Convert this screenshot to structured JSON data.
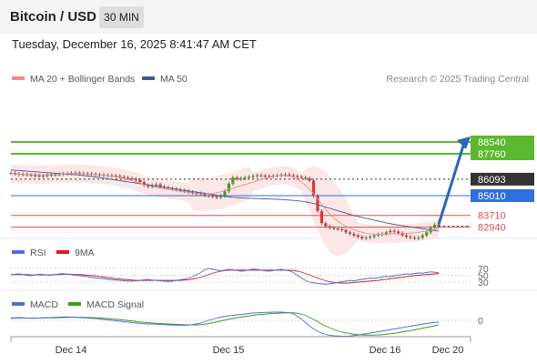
{
  "header": {
    "title": "Bitcoin / USD",
    "timeframe": "30 MIN",
    "datetime": "Tuesday, December 16, 2025 8:41:47 AM CET"
  },
  "chart_data": [
    {
      "type": "line",
      "legend": [
        {
          "label": "MA 20 + Bollinger Bands",
          "color": "#f28a8a"
        },
        {
          "label": "MA 50",
          "color": "#3d5c9a"
        }
      ],
      "source": "Research © 2025 Trading Central",
      "levels": [
        {
          "value": 88540,
          "label": "88540",
          "color": "#5cb82e"
        },
        {
          "value": 87760,
          "label": "87760",
          "color": "#5cb82e"
        },
        {
          "value": 86093,
          "label": "86093",
          "color": "#333333"
        },
        {
          "value": 85010,
          "label": "85010",
          "color": "#2f6fe0"
        },
        {
          "value": 83710,
          "label": "83710",
          "color": "#e05050"
        },
        {
          "value": 82940,
          "label": "82940",
          "color": "#e05050"
        }
      ],
      "price_series": [
        86500,
        86450,
        86400,
        86420,
        86380,
        86350,
        86330,
        86300,
        86320,
        86350,
        86380,
        86400,
        86420,
        86450,
        86470,
        86500,
        86520,
        86480,
        86460,
        86450,
        86430,
        86400,
        86380,
        86360,
        86340,
        86320,
        86300,
        86250,
        86200,
        86150,
        86100,
        86050,
        85900,
        85700,
        85600,
        85700,
        85750,
        85600,
        85550,
        85500,
        85450,
        85400,
        85350,
        85300,
        85250,
        85200,
        85150,
        85100,
        85050,
        85000,
        84950,
        84900,
        85000,
        85300,
        85800,
        86200,
        86100,
        86150,
        86200,
        86250,
        86300,
        86350,
        86320,
        86300,
        86280,
        86320,
        86350,
        86380,
        86400,
        86350,
        86300,
        86250,
        86200,
        86150,
        86000,
        85000,
        84000,
        83200,
        83000,
        82900,
        82850,
        82800,
        82750,
        82600,
        82500,
        82400,
        82300,
        82200,
        82250,
        82300,
        82400,
        82450,
        82500,
        82600,
        82700,
        82650,
        82550,
        82400,
        82300,
        82250,
        82200,
        82250,
        82400,
        82600,
        82900,
        83100,
        83000
      ],
      "ma50": [
        86700,
        86680,
        86660,
        86640,
        86620,
        86600,
        86580,
        86560,
        86540,
        86520,
        86500,
        86480,
        86460,
        86440,
        86420,
        86400,
        86380,
        86360,
        86330,
        86300,
        86270,
        86240,
        86200,
        86160,
        86120,
        86080,
        86040,
        86000,
        85960,
        85920,
        85880,
        85840,
        85800,
        85760,
        85720,
        85680,
        85640,
        85600,
        85560,
        85520,
        85480,
        85440,
        85400,
        85360,
        85320,
        85280,
        85240,
        85200,
        85160,
        85120,
        85080,
        85040,
        85000,
        84960,
        84930,
        84900,
        84880,
        84860,
        84850,
        84840,
        84830,
        84820,
        84810,
        84800,
        84790,
        84780,
        84770,
        84760,
        84740,
        84720,
        84700,
        84680,
        84640,
        84600,
        84560,
        84500,
        84420,
        84340,
        84260,
        84180,
        84100,
        84020,
        83940,
        83860,
        83780,
        83700,
        83640,
        83580,
        83520,
        83460,
        83400,
        83340,
        83280,
        83220,
        83170,
        83120,
        83080,
        83040,
        83000,
        82960,
        82920,
        82880,
        82840,
        82800,
        82760,
        82720,
        82680
      ],
      "ma20": [
        86450,
        86440,
        86430,
        86420,
        86410,
        86400,
        86390,
        86380,
        86380,
        86390,
        86400,
        86410,
        86420,
        86440,
        86450,
        86460,
        86470,
        86460,
        86450,
        86440,
        86420,
        86400,
        86380,
        86350,
        86320,
        86290,
        86250,
        86200,
        86140,
        86080,
        86000,
        85920,
        85830,
        85740,
        85660,
        85600,
        85550,
        85500,
        85460,
        85420,
        85380,
        85340,
        85300,
        85260,
        85220,
        85180,
        85140,
        85120,
        85110,
        85120,
        85150,
        85200,
        85260,
        85340,
        85420,
        85500,
        85580,
        85660,
        85740,
        85820,
        85900,
        85980,
        86060,
        86140,
        86220,
        86280,
        86320,
        86340,
        86330,
        86300,
        86220,
        86080,
        85900,
        85700,
        85450,
        85150,
        84800,
        84450,
        84100,
        83800,
        83550,
        83330,
        83150,
        83000,
        82870,
        82760,
        82670,
        82600,
        82540,
        82500,
        82480,
        82470,
        82470,
        82480,
        82490,
        82500,
        82510,
        82520,
        82530,
        82550,
        82570,
        82600,
        82640,
        82680,
        82730,
        82790,
        82840
      ],
      "x_ticks": [
        "Dec 14",
        "Dec 15",
        "Dec 16",
        "Dec 20"
      ]
    },
    {
      "type": "line",
      "legend": [
        {
          "label": "RSI",
          "color": "#4a6fd9"
        },
        {
          "label": "9MA",
          "color": "#d42020"
        }
      ],
      "levels": [
        "70",
        "50",
        "30"
      ],
      "rsi": [
        52,
        53,
        54,
        52,
        50,
        49,
        51,
        53,
        52,
        51,
        50,
        52,
        54,
        55,
        53,
        52,
        50,
        49,
        48,
        46,
        44,
        42,
        41,
        40,
        38,
        37,
        36,
        35,
        34,
        33,
        33,
        34,
        35,
        37,
        38,
        36,
        35,
        34,
        33,
        32,
        33,
        35,
        37,
        39,
        42,
        46,
        52,
        58,
        66,
        70,
        68,
        65,
        63,
        65,
        67,
        66,
        64,
        62,
        63,
        66,
        68,
        67,
        65,
        63,
        62,
        64,
        66,
        67,
        65,
        63,
        58,
        50,
        42,
        35,
        30,
        28,
        26,
        25,
        24,
        25,
        27,
        29,
        31,
        33,
        35,
        34,
        36,
        38,
        40,
        42,
        41,
        43,
        45,
        47,
        46,
        48,
        50,
        52,
        54,
        53,
        55,
        57,
        56,
        58,
        60,
        59,
        57
      ],
      "ma9": [
        52,
        52,
        52,
        52,
        52,
        51,
        51,
        51,
        51,
        51,
        51,
        52,
        52,
        53,
        53,
        53,
        52,
        52,
        51,
        50,
        49,
        48,
        46,
        45,
        43,
        42,
        40,
        39,
        38,
        37,
        36,
        35,
        35,
        35,
        35,
        35,
        35,
        35,
        35,
        35,
        35,
        35,
        35,
        36,
        37,
        39,
        41,
        44,
        48,
        52,
        56,
        59,
        62,
        64,
        65,
        65,
        65,
        65,
        65,
        65,
        65,
        65,
        65,
        65,
        65,
        65,
        65,
        65,
        65,
        65,
        64,
        62,
        59,
        55,
        51,
        46,
        42,
        38,
        34,
        31,
        29,
        28,
        27,
        27,
        28,
        29,
        30,
        31,
        32,
        33,
        34,
        35,
        37,
        38,
        40,
        41,
        43,
        44,
        46,
        47,
        49,
        50,
        51,
        52,
        53,
        54,
        55
      ]
    },
    {
      "type": "line",
      "legend": [
        {
          "label": "MACD",
          "color": "#4a6fd9"
        },
        {
          "label": "MACD Signal",
          "color": "#3a9a1a"
        }
      ],
      "levels": [
        "0"
      ],
      "macd": [
        10,
        11,
        12,
        11,
        10,
        9,
        9,
        10,
        11,
        12,
        12,
        13,
        14,
        15,
        15,
        14,
        13,
        12,
        11,
        10,
        9,
        8,
        6,
        4,
        2,
        0,
        -2,
        -4,
        -6,
        -8,
        -10,
        -12,
        -14,
        -15,
        -16,
        -16,
        -17,
        -18,
        -19,
        -20,
        -21,
        -21,
        -22,
        -22,
        -21,
        -19,
        -16,
        -12,
        -6,
        0,
        5,
        10,
        14,
        17,
        20,
        22,
        24,
        26,
        28,
        30,
        32,
        33,
        34,
        35,
        35,
        36,
        36,
        36,
        35,
        33,
        28,
        18,
        5,
        -10,
        -25,
        -38,
        -48,
        -56,
        -62,
        -66,
        -68,
        -69,
        -70,
        -70,
        -69,
        -67,
        -65,
        -62,
        -59,
        -56,
        -53,
        -50,
        -47,
        -44,
        -41,
        -38,
        -35,
        -32,
        -29,
        -26,
        -23,
        -20,
        -17,
        -14,
        -11,
        -9,
        -8
      ],
      "signal": [
        8,
        9,
        10,
        10,
        10,
        10,
        10,
        10,
        10,
        11,
        11,
        11,
        12,
        12,
        13,
        13,
        13,
        13,
        13,
        12,
        12,
        11,
        10,
        9,
        8,
        6,
        5,
        3,
        1,
        -1,
        -3,
        -5,
        -7,
        -9,
        -10,
        -12,
        -13,
        -14,
        -15,
        -16,
        -17,
        -18,
        -19,
        -20,
        -20,
        -20,
        -20,
        -19,
        -17,
        -14,
        -11,
        -7,
        -3,
        1,
        5,
        8,
        11,
        14,
        17,
        19,
        22,
        24,
        26,
        27,
        29,
        30,
        31,
        32,
        33,
        33,
        33,
        31,
        27,
        21,
        13,
        4,
        -6,
        -16,
        -25,
        -33,
        -40,
        -46,
        -51,
        -55,
        -58,
        -61,
        -63,
        -64,
        -65,
        -65,
        -65,
        -64,
        -63,
        -61,
        -59,
        -57,
        -54,
        -51,
        -48,
        -45,
        -42,
        -38,
        -35,
        -31,
        -28,
        -24,
        -20
      ]
    }
  ]
}
